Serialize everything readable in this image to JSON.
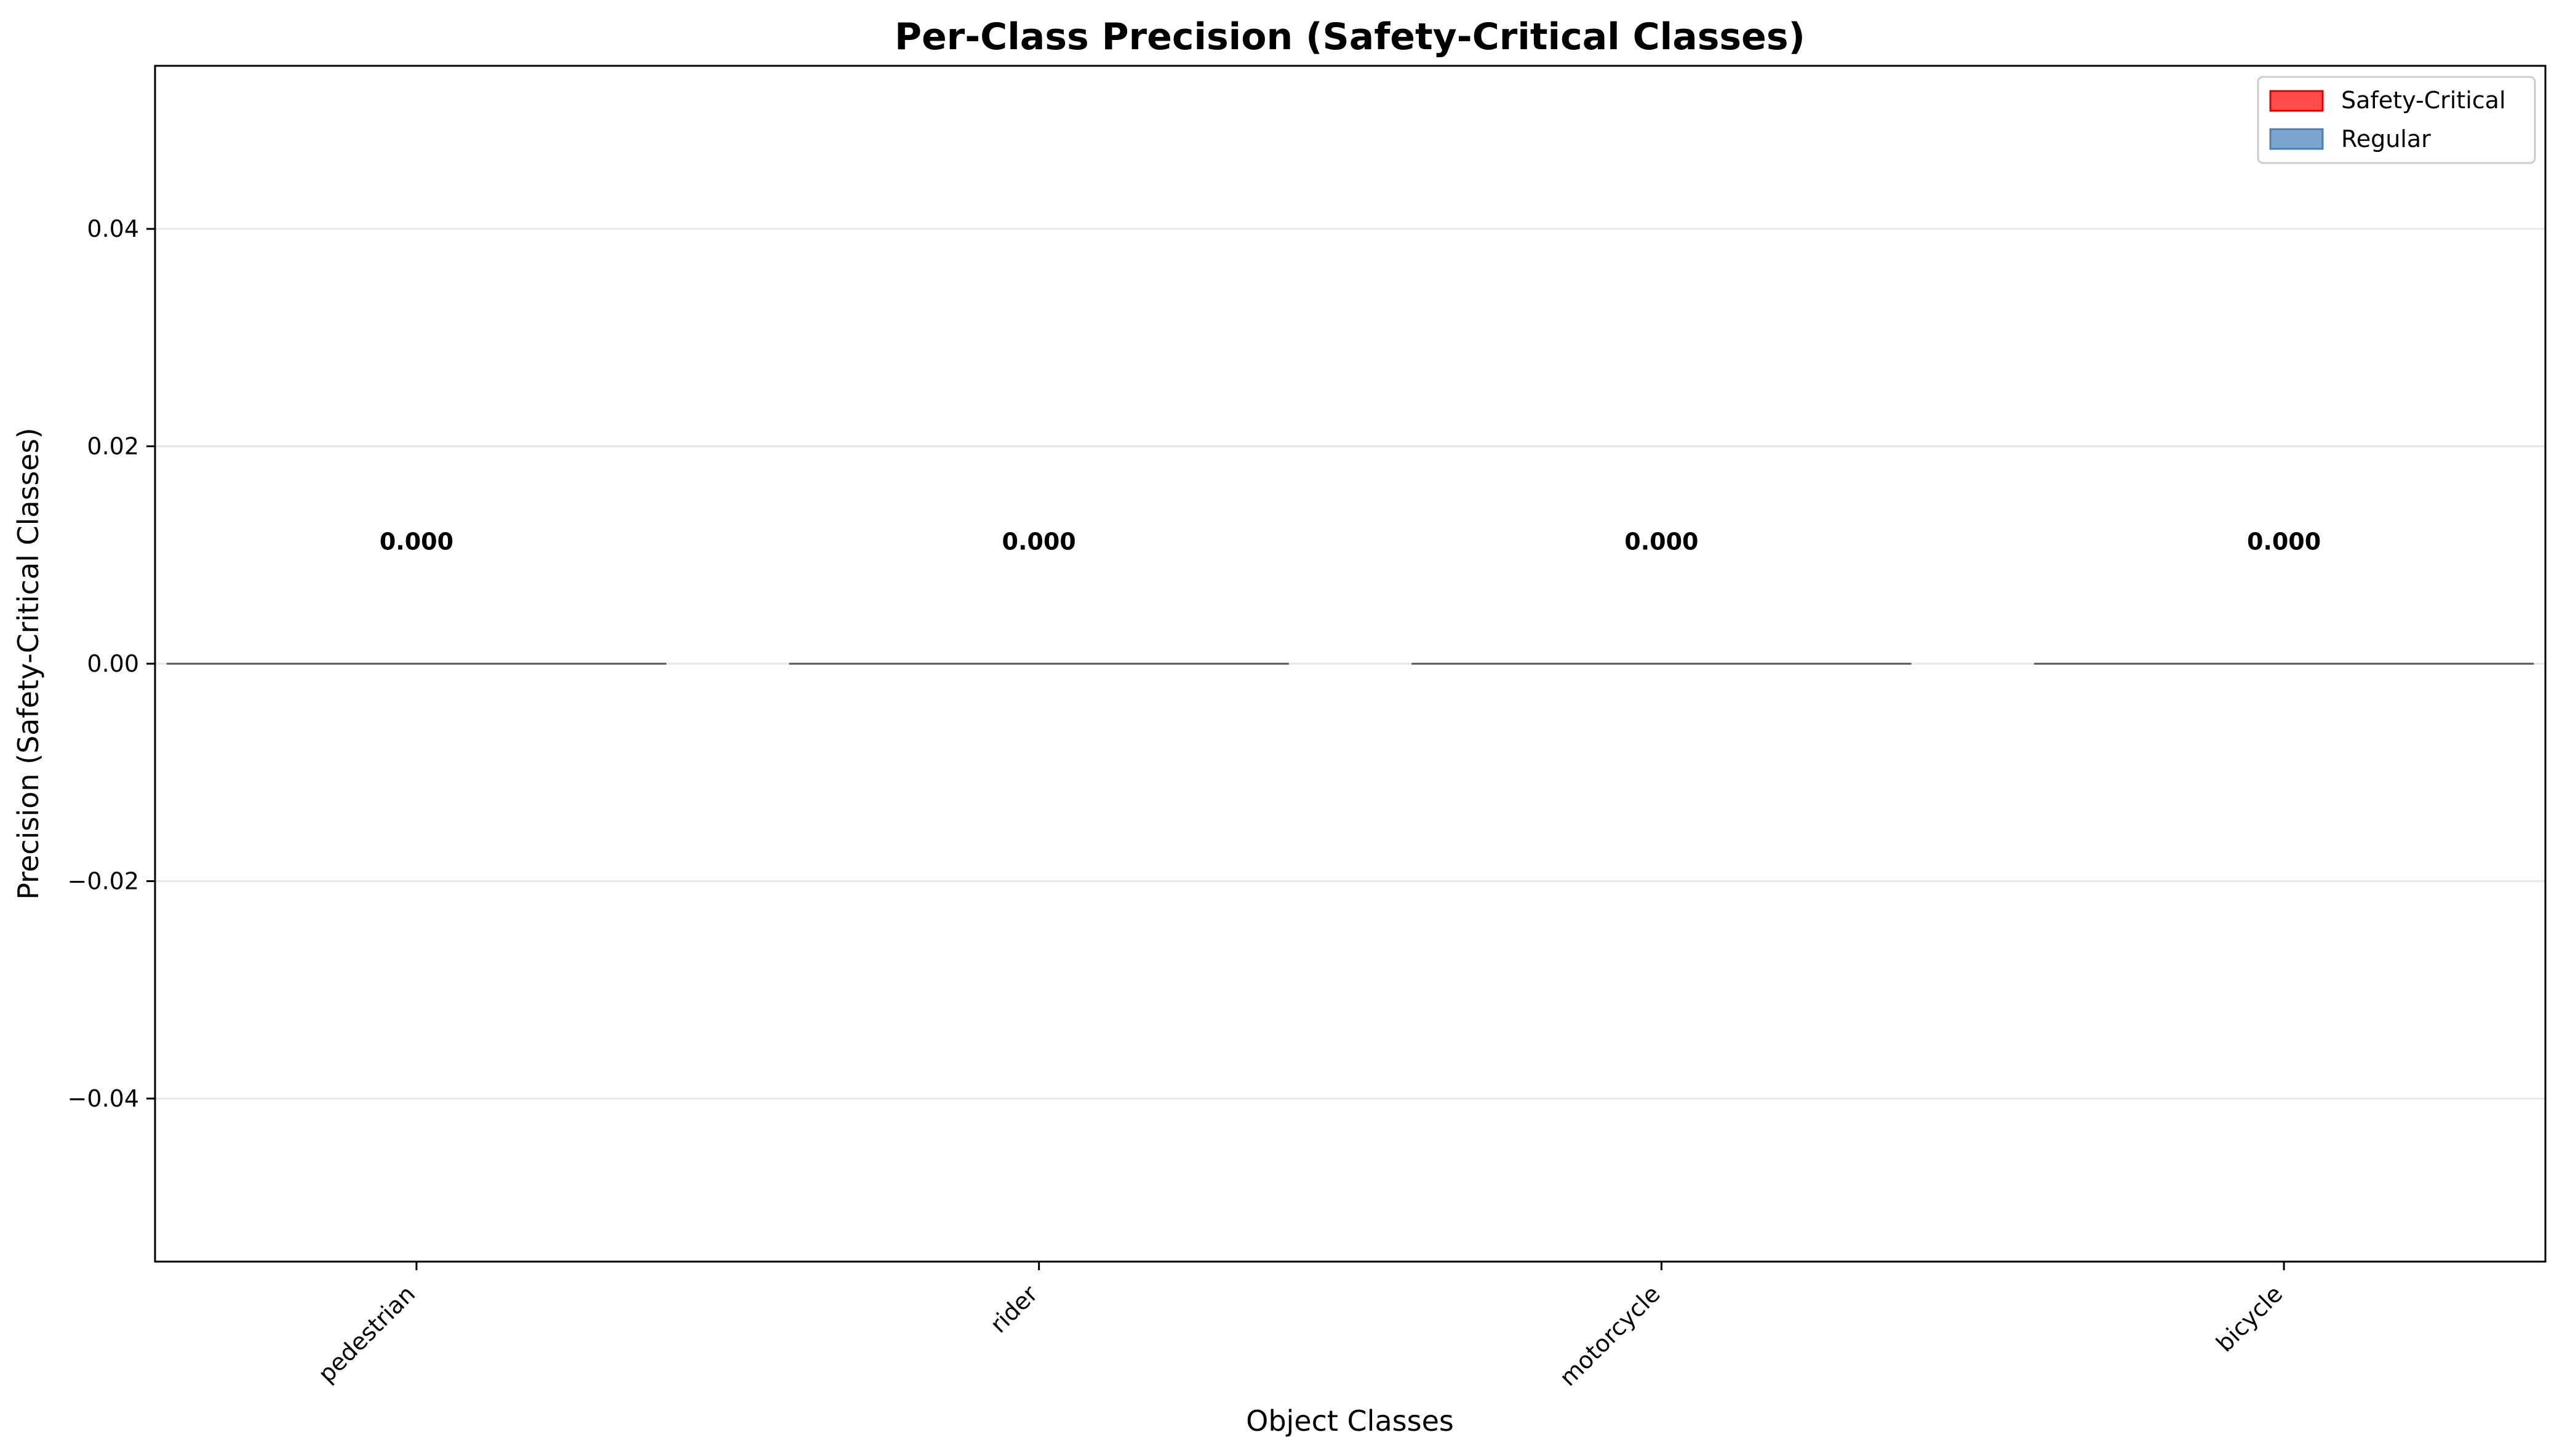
{
  "chart_data": {
    "type": "bar",
    "title": "Per-Class Precision (Safety-Critical Classes)",
    "xlabel": "Object Classes",
    "ylabel": "Precision (Safety-Critical Classes)",
    "categories": [
      "pedestrian",
      "rider",
      "motorcycle",
      "bicycle"
    ],
    "values": [
      0.0,
      0.0,
      0.0,
      0.0
    ],
    "data_labels": [
      "0.000",
      "0.000",
      "0.000",
      "0.000"
    ],
    "ylim": [
      -0.055,
      0.055
    ],
    "yticks": [
      -0.04,
      -0.02,
      0.0,
      0.02,
      0.04
    ],
    "ytick_labels": [
      "−0.04",
      "−0.02",
      "0.00",
      "0.02",
      "0.04"
    ],
    "grid": "y",
    "legend_position": "top-right",
    "legend": [
      {
        "label": "Safety-Critical",
        "color": "#ff4d4d",
        "edge": "#e00000"
      },
      {
        "label": "Regular",
        "color": "#7ba4cc",
        "edge": "#4f7fae"
      }
    ],
    "bar_edge_color": "#555555"
  }
}
